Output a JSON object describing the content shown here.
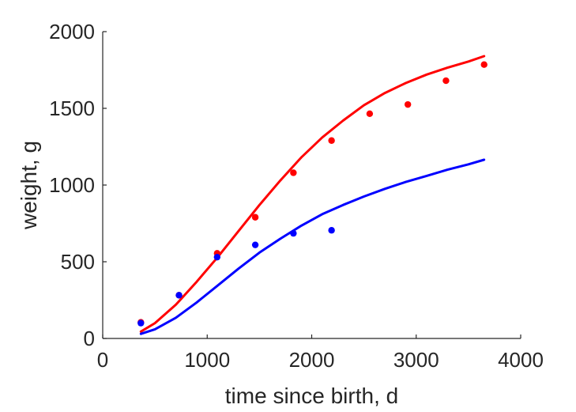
{
  "chart_data": {
    "type": "scatter",
    "xlabel": "time since birth, d",
    "ylabel": "weight, g",
    "xlim": [
      0,
      4000
    ],
    "ylim": [
      0,
      2000
    ],
    "xticks": [
      0,
      1000,
      2000,
      3000,
      4000
    ],
    "yticks": [
      0,
      500,
      1000,
      1500,
      2000
    ],
    "grid": false,
    "box": false,
    "series": [
      {
        "color": "#ff0000",
        "kind": "points",
        "x": [
          365,
          730,
          1095,
          1460,
          1825,
          2190,
          2555,
          2920,
          3285,
          3650
        ],
        "y": [
          105,
          282,
          555,
          790,
          1080,
          1290,
          1465,
          1525,
          1680,
          1785
        ]
      },
      {
        "color": "#0000ff",
        "kind": "points",
        "x": [
          365,
          730,
          1095,
          1460,
          1825,
          2190
        ],
        "y": [
          100,
          282,
          530,
          610,
          685,
          705
        ]
      },
      {
        "color": "#ff0000",
        "kind": "curve",
        "x": [
          365,
          500,
          700,
          900,
          1100,
          1300,
          1500,
          1700,
          1900,
          2100,
          2300,
          2500,
          2700,
          2900,
          3100,
          3300,
          3500,
          3650
        ],
        "y": [
          45,
          100,
          220,
          370,
          530,
          700,
          870,
          1030,
          1180,
          1310,
          1420,
          1520,
          1600,
          1665,
          1720,
          1765,
          1805,
          1840
        ]
      },
      {
        "color": "#0000ff",
        "kind": "curve",
        "x": [
          365,
          500,
          700,
          900,
          1100,
          1300,
          1500,
          1700,
          1900,
          2100,
          2300,
          2500,
          2700,
          2900,
          3100,
          3300,
          3500,
          3650
        ],
        "y": [
          30,
          60,
          135,
          235,
          345,
          455,
          560,
          650,
          735,
          810,
          870,
          925,
          975,
          1020,
          1060,
          1100,
          1135,
          1165
        ]
      }
    ]
  }
}
